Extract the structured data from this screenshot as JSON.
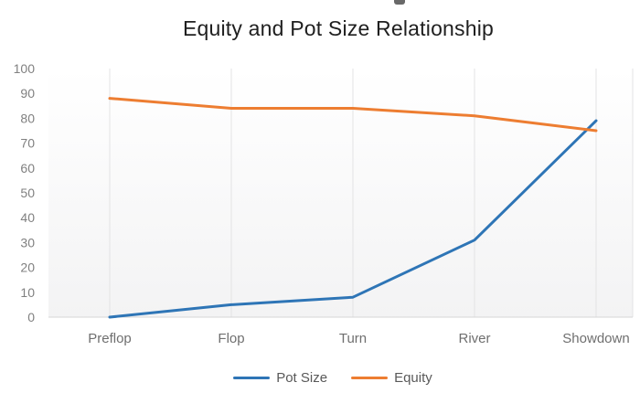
{
  "chart_data": {
    "type": "line",
    "title": "Equity and Pot Size Relationship",
    "categories": [
      "Preflop",
      "Flop",
      "Turn",
      "River",
      "Showdown"
    ],
    "series": [
      {
        "name": "Pot Size",
        "color": "#2E75B6",
        "values": [
          0,
          5,
          8,
          31,
          79
        ]
      },
      {
        "name": "Equity",
        "color": "#ED7D31",
        "values": [
          88,
          84,
          84,
          81,
          75
        ]
      }
    ],
    "xlabel": "",
    "ylabel": "",
    "ylim": [
      0,
      100
    ],
    "yticks": [
      0,
      10,
      20,
      30,
      40,
      50,
      60,
      70,
      80,
      90,
      100
    ],
    "grid": "vertical",
    "legend_position": "bottom",
    "gridline_color": "#e3e3e4",
    "axis_color": "#d6d6d6",
    "plot_bg_top": "#ffffff",
    "plot_bg_bottom": "#f3f3f4",
    "tick_label_color": "#808080",
    "category_label_color": "#6f6f6f",
    "legend_text_color": "#595959"
  }
}
